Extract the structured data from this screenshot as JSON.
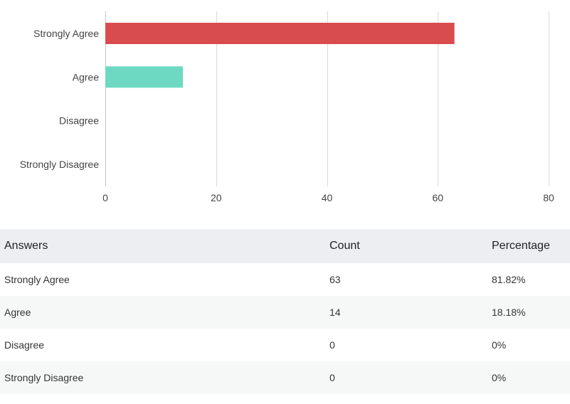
{
  "chart_data": {
    "type": "bar",
    "orientation": "horizontal",
    "categories": [
      "Strongly Agree",
      "Agree",
      "Disagree",
      "Strongly Disagree"
    ],
    "values": [
      63,
      14,
      0,
      0
    ],
    "colors": [
      "#d94c4e",
      "#6ed9c2",
      "#d94c4e",
      "#d94c4e"
    ],
    "xlim": [
      0,
      80
    ],
    "xticks": [
      "0",
      "20",
      "40",
      "60",
      "80"
    ],
    "grid": true
  },
  "table": {
    "headers": [
      "Answers",
      "Count",
      "Percentage"
    ],
    "rows": [
      [
        "Strongly Agree",
        "63",
        "81.82%"
      ],
      [
        "Agree",
        "14",
        "18.18%"
      ],
      [
        "Disagree",
        "0",
        "0%"
      ],
      [
        "Strongly Disagree",
        "0",
        "0%"
      ]
    ]
  }
}
